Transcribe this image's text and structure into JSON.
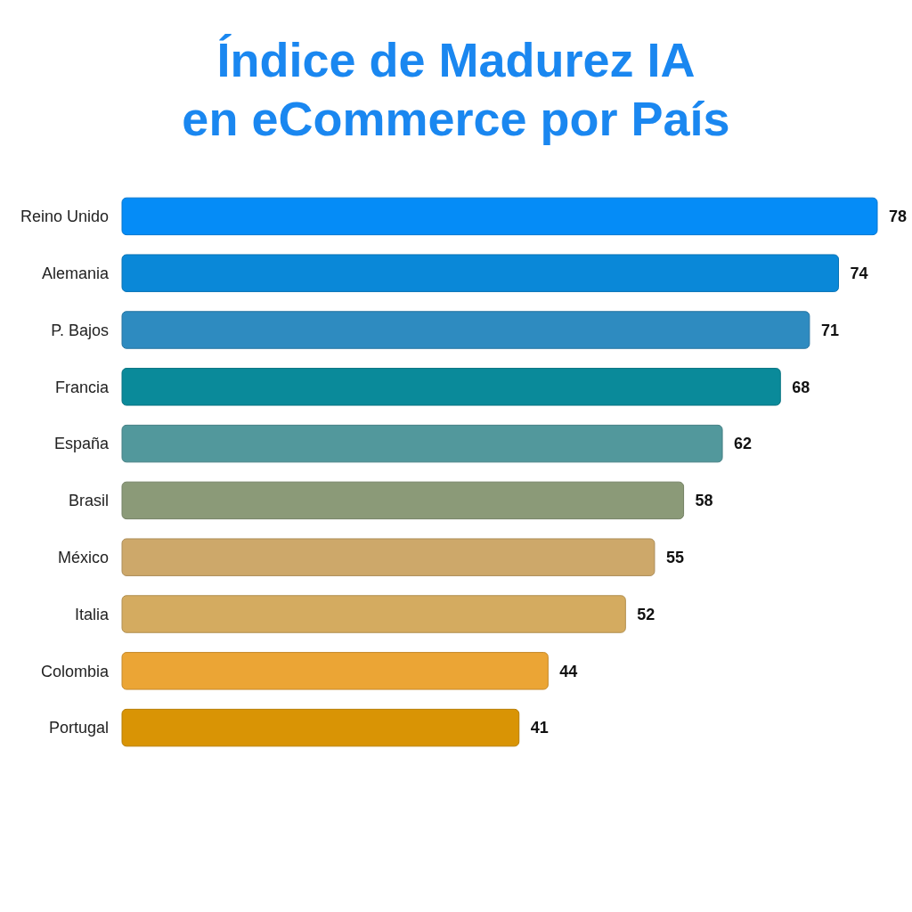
{
  "chart_data": {
    "type": "bar",
    "orientation": "horizontal",
    "title": "Índice de Madurez IA\nen eCommerce por País",
    "categories": [
      "Reino Unido",
      "Alemania",
      "P. Bajos",
      "Francia",
      "España",
      "Brasil",
      "México",
      "Italia",
      "Colombia",
      "Portugal"
    ],
    "values": [
      78,
      74,
      71,
      68,
      62,
      58,
      55,
      52,
      44,
      41
    ],
    "colors": [
      "#058cf7",
      "#0a88d8",
      "#2e8bc0",
      "#0a8a9a",
      "#52989c",
      "#8b9a78",
      "#cda86a",
      "#d4ab60",
      "#eba535",
      "#d99405"
    ],
    "data_labels": true
  }
}
